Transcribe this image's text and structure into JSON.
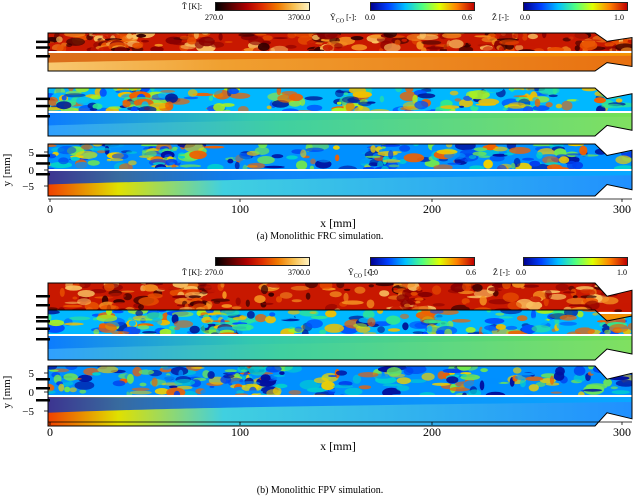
{
  "colorbars": [
    {
      "symbol": "T̃ [K]:",
      "min": "270.0",
      "max": "3700.0",
      "colors": [
        "#000000",
        "#5a0000",
        "#b00000",
        "#e03000",
        "#f07a00",
        "#f8c050",
        "#fff2c0"
      ]
    },
    {
      "symbol": "Ỹ",
      "sub": "CO",
      "unit": " [-]:",
      "min": "0.0",
      "max": "0.6",
      "colors": [
        "#00008f",
        "#0040ff",
        "#00c0ff",
        "#50ff80",
        "#e0ff00",
        "#ff8000",
        "#c00000"
      ]
    },
    {
      "symbol": "Z̃ [-]:",
      "min": "0.0",
      "max": "1.0",
      "colors": [
        "#00008f",
        "#0040ff",
        "#00c0ff",
        "#50ff80",
        "#e0ff00",
        "#ff8000",
        "#c00000"
      ]
    }
  ],
  "axes": {
    "ylabel": "y [mm]",
    "xlabel": "x [mm]",
    "yticks": [
      "5",
      "0",
      "−5"
    ],
    "xticks": [
      "0",
      "100",
      "200",
      "300"
    ]
  },
  "panels": [
    {
      "caption": "(a) Monolithic FRC simulation."
    },
    {
      "caption": "(b) Monolithic FPV simulation."
    }
  ],
  "palette": {
    "temperature": [
      "#3a0000",
      "#8a0000",
      "#c81800",
      "#e85000",
      "#f49020",
      "#f8c060"
    ],
    "species": [
      "#001a9a",
      "#0050ff",
      "#00b8ff",
      "#30e890",
      "#a8f020",
      "#f0c000",
      "#f06000"
    ],
    "mixture": [
      "#0010a0",
      "#0040f0",
      "#0090ff",
      "#00d0d0",
      "#70e850",
      "#f0d000",
      "#f06000"
    ]
  }
}
